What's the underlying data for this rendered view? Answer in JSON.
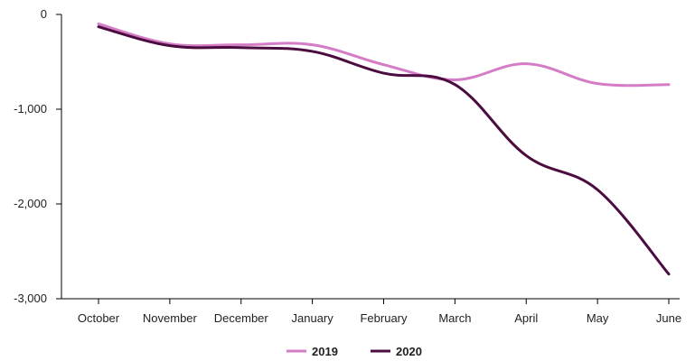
{
  "chart_data": {
    "type": "line",
    "categories": [
      "October",
      "November",
      "December",
      "January",
      "February",
      "March",
      "April",
      "May",
      "June"
    ],
    "series": [
      {
        "name": "2019",
        "color": "#d57cc6",
        "values": [
          -100,
          -310,
          -320,
          -320,
          -530,
          -690,
          -520,
          -730,
          -740
        ]
      },
      {
        "name": "2020",
        "color": "#4b0c3f",
        "values": [
          -130,
          -330,
          -350,
          -390,
          -620,
          -740,
          -1490,
          -1850,
          -2740
        ]
      }
    ],
    "yticks": [
      0,
      -1000,
      -2000,
      -3000
    ],
    "ytick_labels": [
      "0",
      "-1,000",
      "-2,000",
      "-3,000"
    ],
    "ylim": [
      -3000,
      0
    ],
    "legend_position": "bottom-center",
    "grid": false
  }
}
